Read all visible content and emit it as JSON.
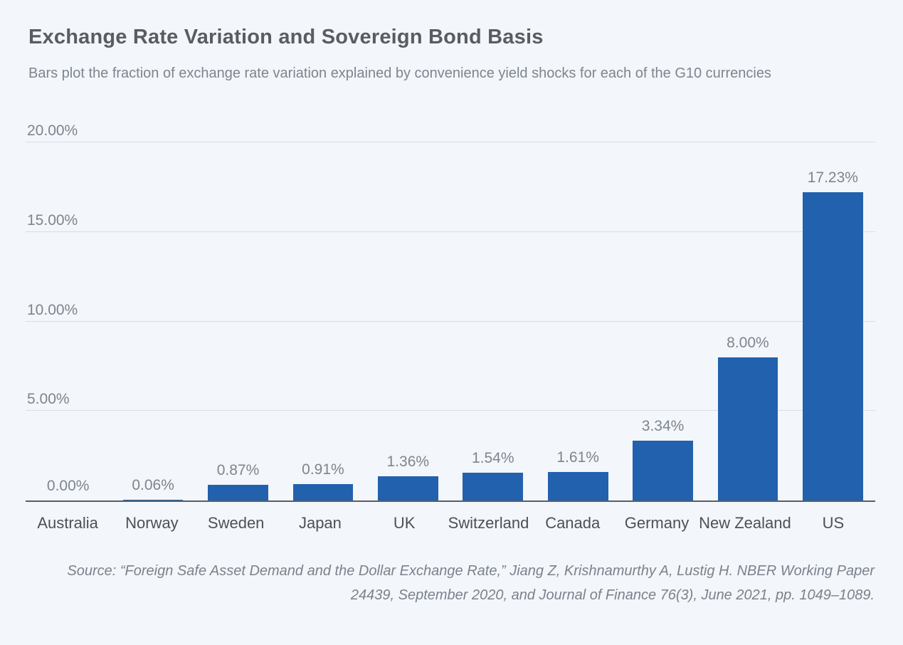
{
  "header": {
    "title": "Exchange Rate Variation and Sovereign Bond Basis",
    "subtitle": "Bars plot the fraction of exchange rate variation explained by convenience yield shocks for each of the G10 currencies"
  },
  "chart_data": {
    "type": "bar",
    "title": "Exchange Rate Variation and Sovereign Bond Basis",
    "xlabel": "",
    "ylabel": "",
    "categories": [
      "Australia",
      "Norway",
      "Sweden",
      "Japan",
      "UK",
      "Switzerland",
      "Canada",
      "Germany",
      "New Zealand",
      "US"
    ],
    "values": [
      0.0,
      0.06,
      0.87,
      0.91,
      1.36,
      1.54,
      1.61,
      3.34,
      8.0,
      17.23
    ],
    "value_labels": [
      "0.00%",
      "0.06%",
      "0.87%",
      "0.91%",
      "1.36%",
      "1.54%",
      "1.61%",
      "3.34%",
      "8.00%",
      "17.23%"
    ],
    "ylim": [
      0,
      20
    ],
    "y_ticks": [
      {
        "value": 5,
        "label": "5.00%"
      },
      {
        "value": 10,
        "label": "10.00%"
      },
      {
        "value": 15,
        "label": "15.00%"
      },
      {
        "value": 20,
        "label": "20.00%"
      }
    ],
    "grid": true,
    "legend": "none",
    "bar_color": "#2161ae",
    "background_color": "#f3f6fa",
    "gridline_color": "#dadfe5",
    "axis_line_color": "#5a5e64"
  },
  "footer": {
    "source": "Source: “Foreign Safe Asset Demand and the Dollar Exchange Rate,” Jiang Z, Krishnamurthy A, Lustig H. NBER Working Paper 24439, September 2020, and Journal of Finance 76(3), June 2021, pp. 1049–1089."
  }
}
